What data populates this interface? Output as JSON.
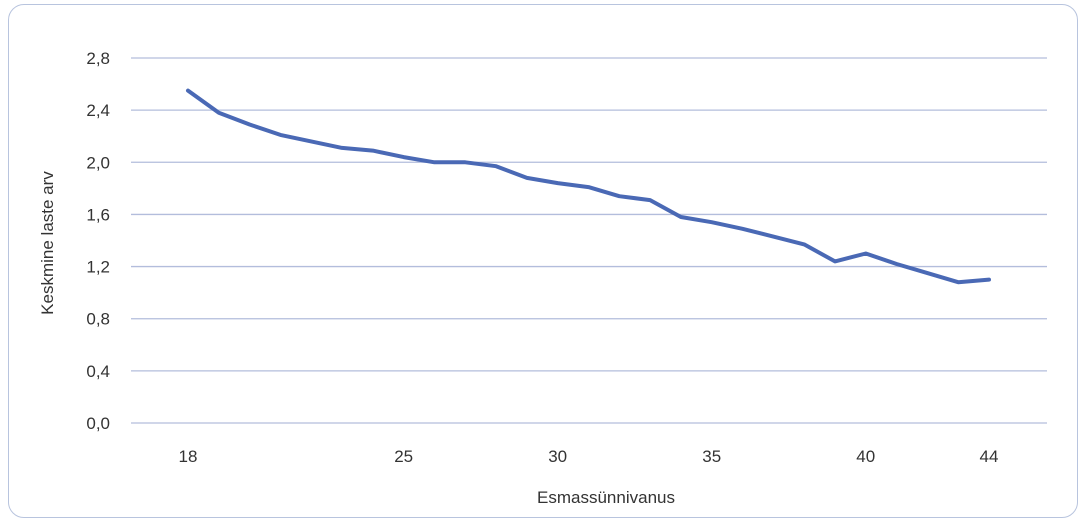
{
  "chart_data": {
    "type": "line",
    "title": "",
    "xlabel": "Esmassünnivanus",
    "ylabel": "Keskmine laste arv",
    "xlim": [
      18,
      44
    ],
    "ylim": [
      0,
      2.8
    ],
    "grid": true,
    "y_ticks": [
      {
        "value": 0,
        "label": "0,0"
      },
      {
        "value": 0.4,
        "label": "0,4"
      },
      {
        "value": 0.8,
        "label": "0,8"
      },
      {
        "value": 1.2,
        "label": "1,2"
      },
      {
        "value": 1.6,
        "label": "1,6"
      },
      {
        "value": 2.0,
        "label": "2,0"
      },
      {
        "value": 2.4,
        "label": "2,4"
      },
      {
        "value": 2.8,
        "label": "2,8"
      }
    ],
    "x_ticks": [
      {
        "value": 18,
        "label": "18"
      },
      {
        "value": 25,
        "label": "25"
      },
      {
        "value": 30,
        "label": "30"
      },
      {
        "value": 35,
        "label": "35"
      },
      {
        "value": 40,
        "label": "40"
      },
      {
        "value": 44,
        "label": "44"
      }
    ],
    "series": [
      {
        "color": "#4a69b5",
        "points": [
          {
            "x": 18,
            "y": 2.55
          },
          {
            "x": 19,
            "y": 2.38
          },
          {
            "x": 20,
            "y": 2.29
          },
          {
            "x": 21,
            "y": 2.21
          },
          {
            "x": 22,
            "y": 2.16
          },
          {
            "x": 23,
            "y": 2.11
          },
          {
            "x": 24,
            "y": 2.09
          },
          {
            "x": 25,
            "y": 2.04
          },
          {
            "x": 26,
            "y": 2.0
          },
          {
            "x": 27,
            "y": 2.0
          },
          {
            "x": 28,
            "y": 1.97
          },
          {
            "x": 29,
            "y": 1.88
          },
          {
            "x": 30,
            "y": 1.84
          },
          {
            "x": 31,
            "y": 1.81
          },
          {
            "x": 32,
            "y": 1.74
          },
          {
            "x": 33,
            "y": 1.71
          },
          {
            "x": 34,
            "y": 1.58
          },
          {
            "x": 35,
            "y": 1.54
          },
          {
            "x": 36,
            "y": 1.49
          },
          {
            "x": 37,
            "y": 1.43
          },
          {
            "x": 38,
            "y": 1.37
          },
          {
            "x": 39,
            "y": 1.24
          },
          {
            "x": 40,
            "y": 1.3
          },
          {
            "x": 41,
            "y": 1.22
          },
          {
            "x": 42,
            "y": 1.15
          },
          {
            "x": 43,
            "y": 1.08
          },
          {
            "x": 44,
            "y": 1.1
          }
        ]
      }
    ],
    "colors": {
      "line": "#4a69b5",
      "grid": "#b3bddc",
      "frame": "#b8c4de",
      "text": "#333333"
    }
  }
}
